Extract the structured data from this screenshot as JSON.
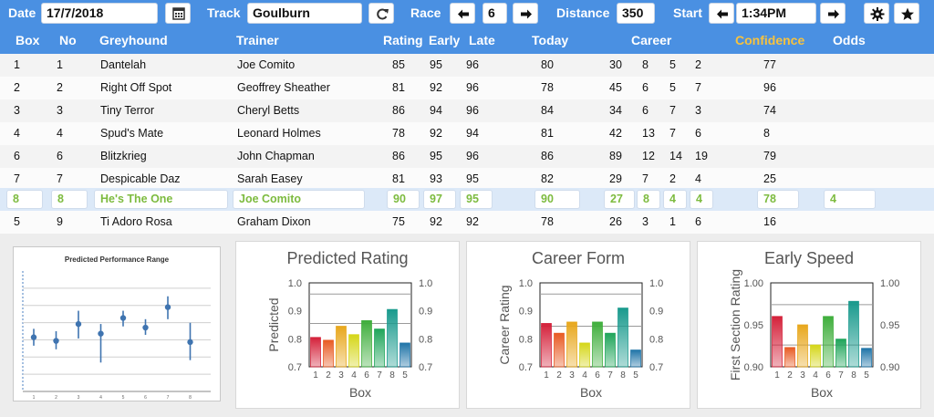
{
  "topbar": {
    "date_label": "Date",
    "date_value": "17/7/2018",
    "track_label": "Track",
    "track_value": "Goulburn",
    "race_label": "Race",
    "race_value": "6",
    "distance_label": "Distance",
    "distance_value": "350",
    "start_label": "Start",
    "start_value": "1:34PM"
  },
  "columns": {
    "box": "Box",
    "no": "No",
    "greyhound": "Greyhound",
    "trainer": "Trainer",
    "rating": "Rating",
    "early": "Early",
    "late": "Late",
    "today": "Today",
    "career": "Career",
    "confidence": "Confidence",
    "odds": "Odds"
  },
  "rows": [
    {
      "box": "1",
      "no": "1",
      "name": "Dantelah",
      "trainer": "Joe Comito",
      "rating": "85",
      "early": "95",
      "late": "96",
      "today": "80",
      "c1": "30",
      "c2": "8",
      "c3": "5",
      "c4": "2",
      "confidence": "77",
      "odds": ""
    },
    {
      "box": "2",
      "no": "2",
      "name": "Right Off Spot",
      "trainer": "Geoffrey Sheather",
      "rating": "81",
      "early": "92",
      "late": "96",
      "today": "78",
      "c1": "45",
      "c2": "6",
      "c3": "5",
      "c4": "7",
      "confidence": "96",
      "odds": ""
    },
    {
      "box": "3",
      "no": "3",
      "name": "Tiny Terror",
      "trainer": "Cheryl Betts",
      "rating": "86",
      "early": "94",
      "late": "96",
      "today": "84",
      "c1": "34",
      "c2": "6",
      "c3": "7",
      "c4": "3",
      "confidence": "74",
      "odds": ""
    },
    {
      "box": "4",
      "no": "4",
      "name": "Spud's Mate",
      "trainer": "Leonard Holmes",
      "rating": "78",
      "early": "92",
      "late": "94",
      "today": "81",
      "c1": "42",
      "c2": "13",
      "c3": "7",
      "c4": "6",
      "confidence": "8",
      "odds": ""
    },
    {
      "box": "6",
      "no": "6",
      "name": "Blitzkrieg",
      "trainer": "John Chapman",
      "rating": "86",
      "early": "95",
      "late": "96",
      "today": "86",
      "c1": "89",
      "c2": "12",
      "c3": "14",
      "c4": "19",
      "confidence": "79",
      "odds": ""
    },
    {
      "box": "7",
      "no": "7",
      "name": "Despicable Daz",
      "trainer": "Sarah Easey",
      "rating": "81",
      "early": "93",
      "late": "95",
      "today": "82",
      "c1": "29",
      "c2": "7",
      "c3": "2",
      "c4": "4",
      "confidence": "25",
      "odds": ""
    },
    {
      "box": "8",
      "no": "8",
      "name": "He's The One",
      "trainer": "Joe Comito",
      "rating": "90",
      "early": "97",
      "late": "95",
      "today": "90",
      "c1": "27",
      "c2": "8",
      "c3": "4",
      "c4": "4",
      "confidence": "78",
      "odds": "4"
    },
    {
      "box": "5",
      "no": "9",
      "name": "Ti Adoro Rosa",
      "trainer": "Graham Dixon",
      "rating": "75",
      "early": "92",
      "late": "92",
      "today": "78",
      "c1": "26",
      "c2": "3",
      "c3": "1",
      "c4": "6",
      "confidence": "16",
      "odds": ""
    }
  ],
  "colors": {
    "accent": "#4a90e2",
    "confidence": "#f7c23e",
    "selected_text": "#7dbb3f",
    "selected_row": "#dce9f8"
  },
  "chart_data": [
    {
      "type": "scatter",
      "title": "Predicted Performance Range",
      "xlabel": "",
      "ylabel": "",
      "x": [
        "1",
        "2",
        "3",
        "4",
        "5",
        "6",
        "7",
        "8"
      ],
      "values": [
        0.45,
        0.42,
        0.56,
        0.48,
        0.61,
        0.53,
        0.7,
        0.41
      ],
      "low": [
        0.38,
        0.35,
        0.44,
        0.24,
        0.54,
        0.47,
        0.6,
        0.26
      ],
      "high": [
        0.52,
        0.5,
        0.67,
        0.56,
        0.67,
        0.6,
        0.79,
        0.57
      ],
      "ylim": [
        0,
        1
      ],
      "grid": true
    },
    {
      "type": "bar",
      "title": "Predicted Rating",
      "xlabel": "Box",
      "ylabel": "Predicted",
      "categories": [
        "1",
        "2",
        "3",
        "4",
        "6",
        "7",
        "8",
        "5"
      ],
      "values": [
        0.805,
        0.795,
        0.845,
        0.815,
        0.865,
        0.835,
        0.905,
        0.785
      ],
      "ylim": [
        0.7,
        1.0
      ],
      "yticks": [
        "1.0",
        "0.9",
        "0.8",
        "0.7"
      ],
      "ref_lines": [
        0.96,
        0.855
      ]
    },
    {
      "type": "bar",
      "title": "Career Form",
      "xlabel": "Box",
      "ylabel": "Career Rating",
      "categories": [
        "1",
        "2",
        "3",
        "4",
        "6",
        "7",
        "8",
        "5"
      ],
      "values": [
        0.855,
        0.82,
        0.86,
        0.785,
        0.86,
        0.82,
        0.91,
        0.76
      ],
      "ylim": [
        0.7,
        1.0
      ],
      "yticks": [
        "1.0",
        "0.9",
        "0.8",
        "0.7"
      ],
      "ref_lines": [
        0.96,
        0.845
      ]
    },
    {
      "type": "bar",
      "title": "Early Speed",
      "xlabel": "Box",
      "ylabel": "First Section Rating",
      "categories": [
        "1",
        "2",
        "3",
        "4",
        "6",
        "7",
        "8",
        "5"
      ],
      "values": [
        0.96,
        0.923,
        0.95,
        0.926,
        0.96,
        0.933,
        0.978,
        0.922
      ],
      "ylim": [
        0.9,
        1.0
      ],
      "yticks": [
        "1.00",
        "0.95",
        "0.90"
      ],
      "ref_lines": [
        0.974,
        0.926
      ]
    }
  ]
}
